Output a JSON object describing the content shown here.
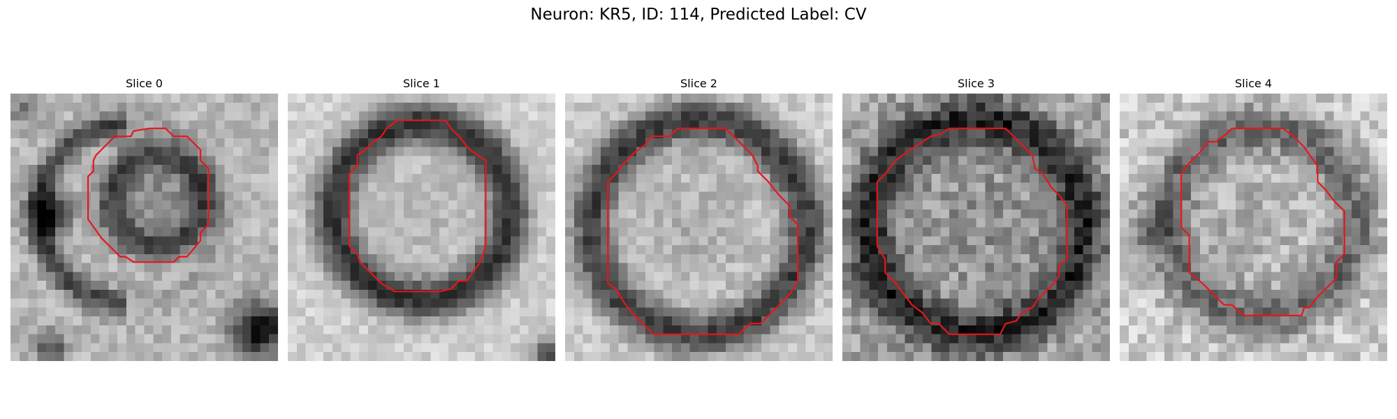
{
  "figure": {
    "title": "Neuron: KR5, ID: 114, Predicted Label: CV",
    "panels": [
      {
        "title": "Slice 0",
        "contour_color": "#e8161b",
        "contour": [
          [
            0.52,
            0.13
          ],
          [
            0.58,
            0.13
          ],
          [
            0.61,
            0.16
          ],
          [
            0.66,
            0.16
          ],
          [
            0.71,
            0.21
          ],
          [
            0.71,
            0.25
          ],
          [
            0.74,
            0.28
          ],
          [
            0.74,
            0.49
          ],
          [
            0.71,
            0.52
          ],
          [
            0.71,
            0.55
          ],
          [
            0.66,
            0.61
          ],
          [
            0.63,
            0.61
          ],
          [
            0.61,
            0.63
          ],
          [
            0.46,
            0.63
          ],
          [
            0.43,
            0.61
          ],
          [
            0.41,
            0.61
          ],
          [
            0.37,
            0.57
          ],
          [
            0.34,
            0.54
          ],
          [
            0.29,
            0.47
          ],
          [
            0.29,
            0.31
          ],
          [
            0.31,
            0.29
          ],
          [
            0.31,
            0.25
          ],
          [
            0.32,
            0.23
          ],
          [
            0.35,
            0.2
          ],
          [
            0.39,
            0.16
          ],
          [
            0.45,
            0.16
          ],
          [
            0.46,
            0.14
          ]
        ]
      },
      {
        "title": "Slice 1",
        "contour_color": "#e8161b",
        "contour": [
          [
            0.41,
            0.1
          ],
          [
            0.59,
            0.1
          ],
          [
            0.61,
            0.13
          ],
          [
            0.64,
            0.16
          ],
          [
            0.68,
            0.21
          ],
          [
            0.71,
            0.23
          ],
          [
            0.74,
            0.25
          ],
          [
            0.74,
            0.57
          ],
          [
            0.73,
            0.6
          ],
          [
            0.72,
            0.63
          ],
          [
            0.69,
            0.67
          ],
          [
            0.67,
            0.7
          ],
          [
            0.64,
            0.7
          ],
          [
            0.61,
            0.73
          ],
          [
            0.57,
            0.74
          ],
          [
            0.4,
            0.74
          ],
          [
            0.35,
            0.71
          ],
          [
            0.31,
            0.67
          ],
          [
            0.27,
            0.63
          ],
          [
            0.26,
            0.6
          ],
          [
            0.23,
            0.57
          ],
          [
            0.23,
            0.3
          ],
          [
            0.26,
            0.27
          ],
          [
            0.26,
            0.23
          ],
          [
            0.29,
            0.21
          ],
          [
            0.32,
            0.18
          ],
          [
            0.35,
            0.16
          ],
          [
            0.37,
            0.13
          ]
        ]
      },
      {
        "title": "Slice 2",
        "contour_color": "#e8161b",
        "contour": [
          [
            0.42,
            0.13
          ],
          [
            0.6,
            0.13
          ],
          [
            0.63,
            0.16
          ],
          [
            0.67,
            0.2
          ],
          [
            0.7,
            0.23
          ],
          [
            0.72,
            0.27
          ],
          [
            0.72,
            0.29
          ],
          [
            0.76,
            0.33
          ],
          [
            0.8,
            0.38
          ],
          [
            0.84,
            0.42
          ],
          [
            0.84,
            0.46
          ],
          [
            0.87,
            0.49
          ],
          [
            0.87,
            0.7
          ],
          [
            0.84,
            0.75
          ],
          [
            0.81,
            0.78
          ],
          [
            0.77,
            0.82
          ],
          [
            0.73,
            0.86
          ],
          [
            0.69,
            0.86
          ],
          [
            0.65,
            0.9
          ],
          [
            0.33,
            0.9
          ],
          [
            0.29,
            0.86
          ],
          [
            0.25,
            0.82
          ],
          [
            0.22,
            0.78
          ],
          [
            0.19,
            0.73
          ],
          [
            0.16,
            0.71
          ],
          [
            0.16,
            0.33
          ],
          [
            0.19,
            0.3
          ],
          [
            0.22,
            0.26
          ],
          [
            0.26,
            0.22
          ],
          [
            0.3,
            0.19
          ],
          [
            0.32,
            0.16
          ],
          [
            0.39,
            0.16
          ]
        ]
      },
      {
        "title": "Slice 3",
        "contour_color": "#e8161b",
        "contour": [
          [
            0.4,
            0.13
          ],
          [
            0.61,
            0.13
          ],
          [
            0.64,
            0.16
          ],
          [
            0.68,
            0.2
          ],
          [
            0.71,
            0.23
          ],
          [
            0.72,
            0.28
          ],
          [
            0.75,
            0.3
          ],
          [
            0.78,
            0.35
          ],
          [
            0.81,
            0.38
          ],
          [
            0.84,
            0.42
          ],
          [
            0.84,
            0.62
          ],
          [
            0.81,
            0.64
          ],
          [
            0.81,
            0.68
          ],
          [
            0.79,
            0.71
          ],
          [
            0.76,
            0.74
          ],
          [
            0.73,
            0.77
          ],
          [
            0.71,
            0.8
          ],
          [
            0.67,
            0.82
          ],
          [
            0.65,
            0.85
          ],
          [
            0.61,
            0.86
          ],
          [
            0.59,
            0.9
          ],
          [
            0.4,
            0.9
          ],
          [
            0.36,
            0.86
          ],
          [
            0.33,
            0.86
          ],
          [
            0.3,
            0.82
          ],
          [
            0.26,
            0.79
          ],
          [
            0.23,
            0.75
          ],
          [
            0.2,
            0.71
          ],
          [
            0.16,
            0.67
          ],
          [
            0.16,
            0.62
          ],
          [
            0.13,
            0.57
          ],
          [
            0.13,
            0.43
          ],
          [
            0.13,
            0.33
          ],
          [
            0.16,
            0.3
          ],
          [
            0.2,
            0.25
          ],
          [
            0.24,
            0.22
          ],
          [
            0.27,
            0.2
          ],
          [
            0.33,
            0.16
          ],
          [
            0.37,
            0.15
          ]
        ]
      },
      {
        "title": "Slice 4",
        "contour_color": "#e8161b",
        "contour": [
          [
            0.42,
            0.13
          ],
          [
            0.61,
            0.13
          ],
          [
            0.65,
            0.16
          ],
          [
            0.69,
            0.2
          ],
          [
            0.71,
            0.23
          ],
          [
            0.74,
            0.27
          ],
          [
            0.74,
            0.33
          ],
          [
            0.77,
            0.36
          ],
          [
            0.8,
            0.4
          ],
          [
            0.84,
            0.44
          ],
          [
            0.84,
            0.6
          ],
          [
            0.81,
            0.63
          ],
          [
            0.81,
            0.69
          ],
          [
            0.78,
            0.72
          ],
          [
            0.74,
            0.76
          ],
          [
            0.71,
            0.8
          ],
          [
            0.69,
            0.8
          ],
          [
            0.68,
            0.83
          ],
          [
            0.46,
            0.83
          ],
          [
            0.42,
            0.79
          ],
          [
            0.39,
            0.79
          ],
          [
            0.35,
            0.75
          ],
          [
            0.31,
            0.71
          ],
          [
            0.26,
            0.67
          ],
          [
            0.26,
            0.53
          ],
          [
            0.23,
            0.5
          ],
          [
            0.23,
            0.3
          ],
          [
            0.26,
            0.26
          ],
          [
            0.3,
            0.22
          ],
          [
            0.33,
            0.18
          ],
          [
            0.36,
            0.18
          ],
          [
            0.4,
            0.15
          ]
        ]
      }
    ]
  }
}
